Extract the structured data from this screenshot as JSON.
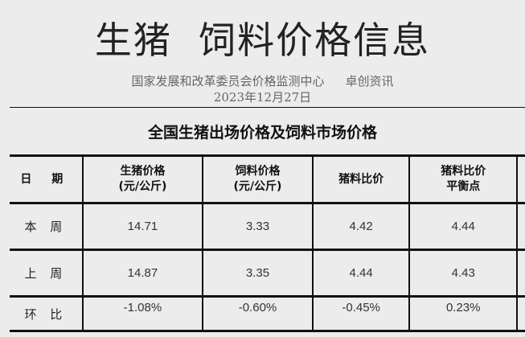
{
  "header": {
    "title": "生猪  饲料价格信息",
    "source_org": "国家发展和改革委员会价格监测中心",
    "source_partner": "卓创资讯",
    "date": "2023年12月27日"
  },
  "section_title": "全国生猪出场价格及饲料市场价格",
  "table": {
    "columns": [
      {
        "line1": "日 期",
        "line2": ""
      },
      {
        "line1": "生猪价格",
        "line2": "(元/公斤)"
      },
      {
        "line1": "饲料价格",
        "line2": "(元/公斤)"
      },
      {
        "line1": "猪料比价",
        "line2": ""
      },
      {
        "line1": "猪料比价",
        "line2": "平衡点"
      }
    ],
    "rows": [
      {
        "label": "本 周",
        "values": [
          "14.71",
          "3.33",
          "4.42",
          "4.44"
        ]
      },
      {
        "label": "上 周",
        "values": [
          "14.87",
          "3.35",
          "4.44",
          "4.43"
        ]
      },
      {
        "label": "环 比",
        "values": [
          "-1.08%",
          "-0.60%",
          "-0.45%",
          "0.23%"
        ]
      }
    ]
  }
}
